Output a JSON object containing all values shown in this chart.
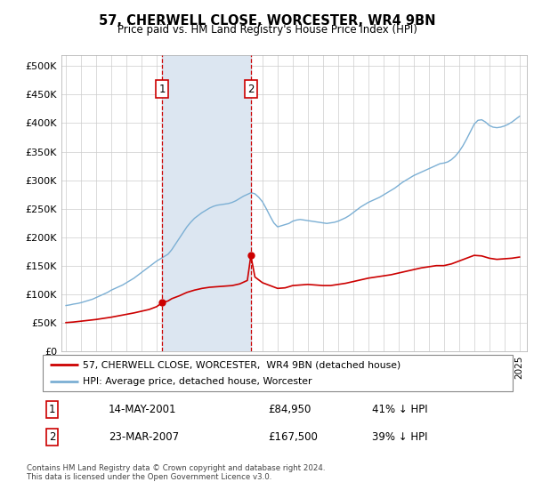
{
  "title": "57, CHERWELL CLOSE, WORCESTER, WR4 9BN",
  "subtitle": "Price paid vs. HM Land Registry's House Price Index (HPI)",
  "ylim": [
    0,
    520000
  ],
  "yticks": [
    0,
    50000,
    100000,
    150000,
    200000,
    250000,
    300000,
    350000,
    400000,
    450000,
    500000
  ],
  "xlim_start": 1994.7,
  "xlim_end": 2025.5,
  "sale1": {
    "date_num": 2001.37,
    "price": 84950,
    "label": "1",
    "date_str": "14-MAY-2001",
    "pct": "41% ↓ HPI"
  },
  "sale2": {
    "date_num": 2007.23,
    "price": 167500,
    "label": "2",
    "date_str": "23-MAR-2007",
    "pct": "39% ↓ HPI"
  },
  "shade_color": "#dce6f1",
  "vline_color": "#cc0000",
  "legend_entries": [
    "57, CHERWELL CLOSE, WORCESTER,  WR4 9BN (detached house)",
    "HPI: Average price, detached house, Worcester"
  ],
  "footer": "Contains HM Land Registry data © Crown copyright and database right 2024.\nThis data is licensed under the Open Government Licence v3.0.",
  "table_rows": [
    [
      "1",
      "14-MAY-2001",
      "£84,950",
      "41% ↓ HPI"
    ],
    [
      "2",
      "23-MAR-2007",
      "£167,500",
      "39% ↓ HPI"
    ]
  ],
  "property_line_color": "#cc0000",
  "hpi_line_color": "#7bafd4",
  "hpi_data_years": [
    1995.0,
    1995.25,
    1995.5,
    1995.75,
    1996.0,
    1996.25,
    1996.5,
    1996.75,
    1997.0,
    1997.25,
    1997.5,
    1997.75,
    1998.0,
    1998.25,
    1998.5,
    1998.75,
    1999.0,
    1999.25,
    1999.5,
    1999.75,
    2000.0,
    2000.25,
    2000.5,
    2000.75,
    2001.0,
    2001.25,
    2001.5,
    2001.75,
    2002.0,
    2002.25,
    2002.5,
    2002.75,
    2003.0,
    2003.25,
    2003.5,
    2003.75,
    2004.0,
    2004.25,
    2004.5,
    2004.75,
    2005.0,
    2005.25,
    2005.5,
    2005.75,
    2006.0,
    2006.25,
    2006.5,
    2006.75,
    2007.0,
    2007.25,
    2007.5,
    2007.75,
    2008.0,
    2008.25,
    2008.5,
    2008.75,
    2009.0,
    2009.25,
    2009.5,
    2009.75,
    2010.0,
    2010.25,
    2010.5,
    2010.75,
    2011.0,
    2011.25,
    2011.5,
    2011.75,
    2012.0,
    2012.25,
    2012.5,
    2012.75,
    2013.0,
    2013.25,
    2013.5,
    2013.75,
    2014.0,
    2014.25,
    2014.5,
    2014.75,
    2015.0,
    2015.25,
    2015.5,
    2015.75,
    2016.0,
    2016.25,
    2016.5,
    2016.75,
    2017.0,
    2017.25,
    2017.5,
    2017.75,
    2018.0,
    2018.25,
    2018.5,
    2018.75,
    2019.0,
    2019.25,
    2019.5,
    2019.75,
    2020.0,
    2020.25,
    2020.5,
    2020.75,
    2021.0,
    2021.25,
    2021.5,
    2021.75,
    2022.0,
    2022.25,
    2022.5,
    2022.75,
    2023.0,
    2023.25,
    2023.5,
    2023.75,
    2024.0,
    2024.25,
    2024.5,
    2024.75,
    2025.0
  ],
  "hpi_data_vals": [
    80000,
    81000,
    82500,
    83500,
    85000,
    87000,
    89000,
    91000,
    94000,
    97000,
    100000,
    103000,
    107000,
    110000,
    113000,
    116000,
    120000,
    124000,
    128000,
    133000,
    138000,
    143000,
    148000,
    153000,
    158000,
    162000,
    166000,
    170000,
    178000,
    188000,
    198000,
    208000,
    218000,
    226000,
    233000,
    238000,
    243000,
    247000,
    251000,
    254000,
    256000,
    257000,
    258000,
    259000,
    261000,
    264000,
    268000,
    272000,
    275000,
    278000,
    276000,
    270000,
    262000,
    250000,
    237000,
    225000,
    218000,
    220000,
    222000,
    224000,
    228000,
    230000,
    231000,
    230000,
    229000,
    228000,
    227000,
    226000,
    225000,
    224000,
    225000,
    226000,
    228000,
    231000,
    234000,
    238000,
    243000,
    248000,
    253000,
    257000,
    261000,
    264000,
    267000,
    270000,
    274000,
    278000,
    282000,
    286000,
    291000,
    296000,
    300000,
    304000,
    308000,
    311000,
    314000,
    317000,
    320000,
    323000,
    326000,
    329000,
    330000,
    332000,
    336000,
    342000,
    350000,
    360000,
    372000,
    385000,
    398000,
    405000,
    406000,
    402000,
    396000,
    393000,
    392000,
    393000,
    395000,
    398000,
    402000,
    407000,
    412000
  ],
  "prop_data_years": [
    1995.0,
    1995.5,
    1996.0,
    1996.5,
    1997.0,
    1997.5,
    1998.0,
    1998.5,
    1999.0,
    1999.5,
    2000.0,
    2000.5,
    2001.0,
    2001.37,
    2001.5,
    2001.75,
    2002.0,
    2002.5,
    2003.0,
    2003.5,
    2004.0,
    2004.5,
    2005.0,
    2005.5,
    2006.0,
    2006.5,
    2007.0,
    2007.23,
    2007.5,
    2007.75,
    2008.0,
    2008.5,
    2009.0,
    2009.5,
    2010.0,
    2010.5,
    2011.0,
    2011.5,
    2012.0,
    2012.5,
    2013.0,
    2013.5,
    2014.0,
    2014.5,
    2015.0,
    2015.5,
    2016.0,
    2016.5,
    2017.0,
    2017.5,
    2018.0,
    2018.5,
    2019.0,
    2019.5,
    2020.0,
    2020.5,
    2021.0,
    2021.5,
    2022.0,
    2022.5,
    2023.0,
    2023.5,
    2024.0,
    2024.5,
    2025.0
  ],
  "prop_data_vals": [
    50000,
    51000,
    52500,
    54000,
    55500,
    57500,
    59500,
    62000,
    64500,
    67000,
    70000,
    73000,
    78000,
    84950,
    86000,
    88000,
    92000,
    97000,
    103000,
    107000,
    110000,
    112000,
    113000,
    114000,
    115000,
    118000,
    124000,
    167500,
    130000,
    125000,
    120000,
    115000,
    110000,
    111000,
    115000,
    116000,
    117000,
    116000,
    115000,
    115000,
    117000,
    119000,
    122000,
    125000,
    128000,
    130000,
    132000,
    134000,
    137000,
    140000,
    143000,
    146000,
    148000,
    150000,
    150000,
    153000,
    158000,
    163000,
    168000,
    167000,
    163000,
    161000,
    162000,
    163000,
    165000
  ]
}
